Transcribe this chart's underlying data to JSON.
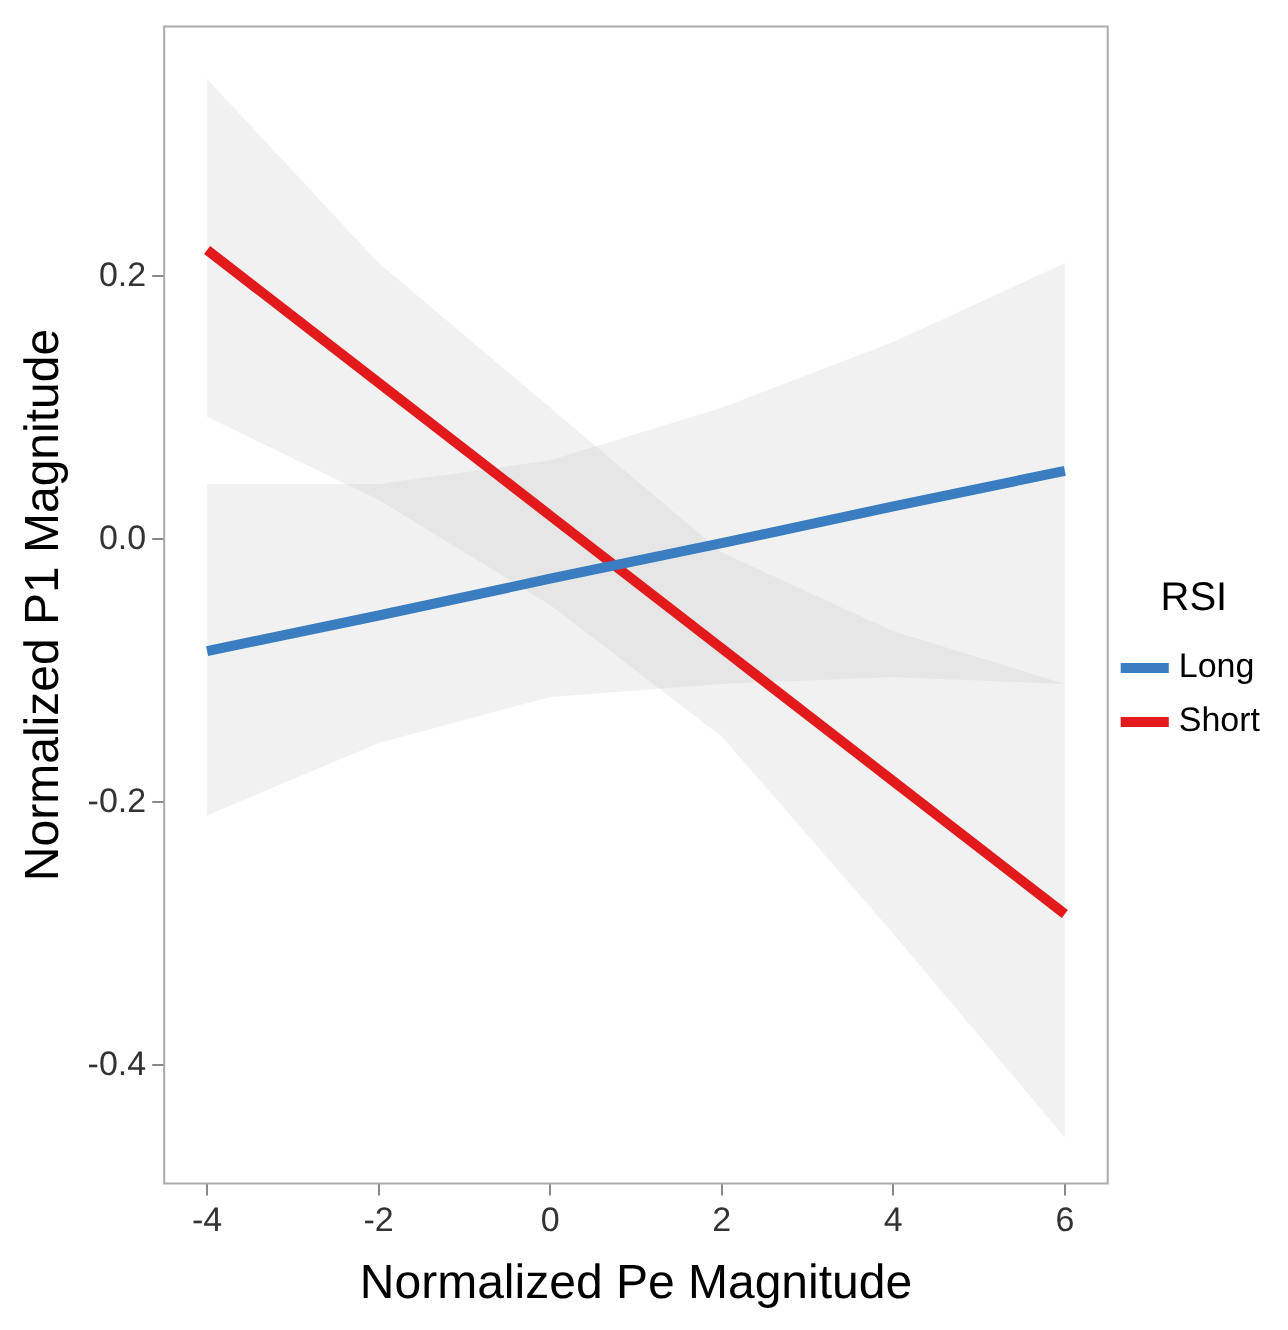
{
  "chart_data": {
    "type": "line",
    "xlabel": "Normalized Pe Magnitude",
    "ylabel": "Normalized P1 Magnitude",
    "legend_title": "RSI",
    "legend": "right",
    "grid": false,
    "marker": "none",
    "line_style": "solid",
    "xlim": [
      -4.5,
      6.5
    ],
    "xticks": [
      -4,
      -2,
      0,
      2,
      4,
      6
    ],
    "ylim": [
      -0.49,
      0.39
    ],
    "yticks": [
      {
        "value": -0.4,
        "label": "-0.4"
      },
      {
        "value": -0.2,
        "label": "-0.2"
      },
      {
        "value": 0,
        "label": "0.0"
      },
      {
        "value": 0.2,
        "label": "0.2"
      }
    ],
    "series": [
      {
        "name": "Long",
        "color": "#3a7dc0",
        "x": [
          -4,
          -2,
          0,
          2,
          4,
          6
        ],
        "values": [
          -0.085,
          -0.058,
          -0.03,
          -0.003,
          0.025,
          0.052
        ],
        "lower": [
          -0.21,
          -0.155,
          -0.12,
          -0.11,
          -0.105,
          -0.11
        ],
        "upper": [
          0.042,
          0.042,
          0.06,
          0.1,
          0.15,
          0.21
        ]
      },
      {
        "name": "Short",
        "color": "#e31a1c",
        "x": [
          -4,
          -2,
          0,
          2,
          4,
          6
        ],
        "values": [
          0.22,
          0.119,
          0.018,
          -0.083,
          -0.184,
          -0.285
        ],
        "lower": [
          0.093,
          0.03,
          -0.05,
          -0.15,
          -0.3,
          -0.455
        ],
        "upper": [
          0.35,
          0.21,
          0.1,
          -0.01,
          -0.07,
          -0.11
        ]
      }
    ]
  }
}
